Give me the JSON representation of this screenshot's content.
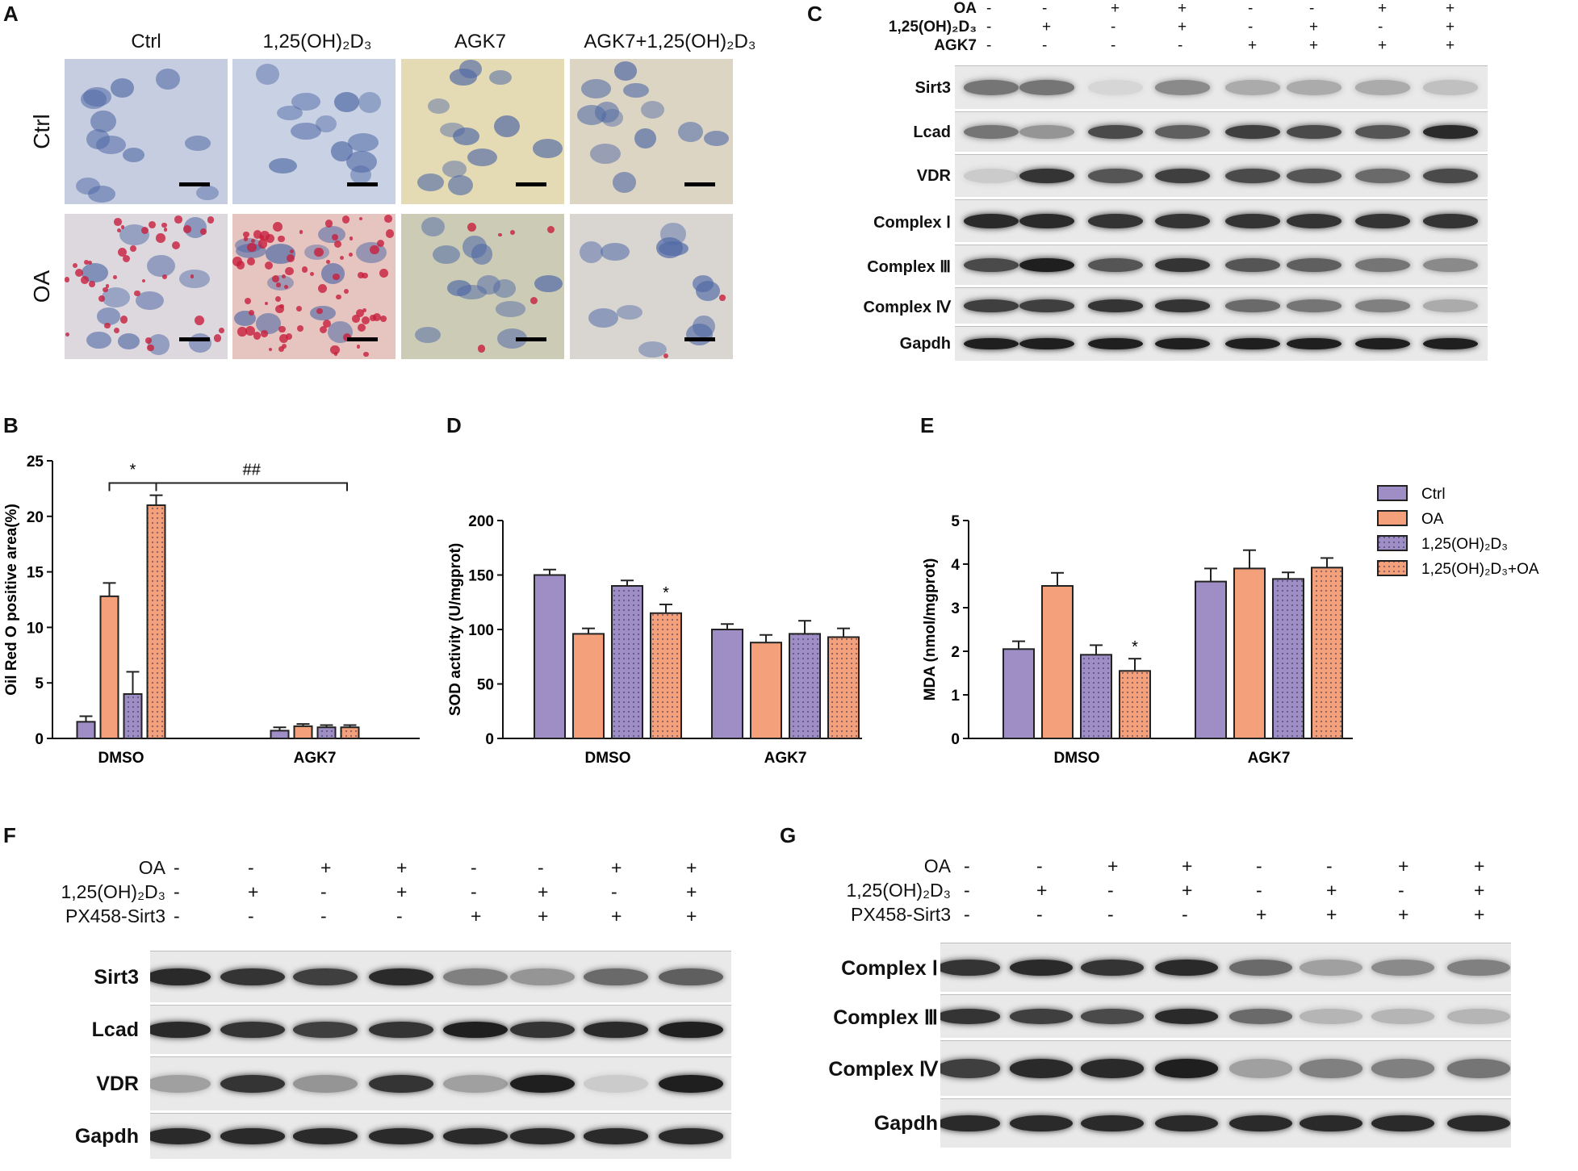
{
  "panel_labels": {
    "A": "A",
    "B": "B",
    "C": "C",
    "D": "D",
    "E": "E",
    "F": "F",
    "G": "G"
  },
  "panelA": {
    "col_headers": [
      "Ctrl",
      "1,25(OH)₂D₃",
      "AGK7",
      "AGK7+1,25(OH)₂D₃"
    ],
    "row_headers": [
      "Ctrl",
      "OA"
    ],
    "tile_colors": [
      [
        "#c7cde0",
        "#c9d2e4",
        "#e4dbb4",
        "#ddd5c3"
      ],
      [
        "#ddd8de",
        "#e6c5c0",
        "#cbcbb6",
        "#d9d6d2"
      ]
    ],
    "red_density": [
      [
        0,
        0,
        0,
        0
      ],
      [
        40,
        80,
        6,
        2
      ]
    ]
  },
  "panelC": {
    "conditions": [
      {
        "label": "OA",
        "signs": [
          "-",
          "-",
          "+",
          "+",
          "-",
          "-",
          "+",
          "+"
        ]
      },
      {
        "label": "1,25(OH)₂D₃",
        "signs": [
          "-",
          "+",
          "-",
          "+",
          "-",
          "+",
          "-",
          "+"
        ]
      },
      {
        "label": "AGK7",
        "signs": [
          "-",
          "-",
          "-",
          "-",
          "+",
          "+",
          "+",
          "+"
        ]
      }
    ],
    "blots": [
      {
        "label": "Sirt3",
        "intensity": [
          0.55,
          0.55,
          0.1,
          0.45,
          0.3,
          0.3,
          0.3,
          0.2
        ]
      },
      {
        "label": "Lcad",
        "intensity": [
          0.55,
          0.4,
          0.75,
          0.65,
          0.8,
          0.75,
          0.7,
          0.9
        ]
      },
      {
        "label": "VDR",
        "intensity": [
          0.15,
          0.85,
          0.7,
          0.8,
          0.75,
          0.7,
          0.6,
          0.75
        ]
      },
      {
        "label": "Complex Ⅰ",
        "intensity": [
          0.9,
          0.9,
          0.85,
          0.85,
          0.85,
          0.85,
          0.85,
          0.85
        ]
      },
      {
        "label": "Complex Ⅲ",
        "intensity": [
          0.75,
          0.95,
          0.7,
          0.85,
          0.7,
          0.65,
          0.55,
          0.45
        ]
      },
      {
        "label": "Complex Ⅳ",
        "intensity": [
          0.8,
          0.8,
          0.85,
          0.85,
          0.6,
          0.55,
          0.5,
          0.3
        ]
      },
      {
        "label": "Gapdh",
        "intensity": [
          0.95,
          0.95,
          0.95,
          0.95,
          0.95,
          0.95,
          0.95,
          0.95
        ]
      }
    ]
  },
  "legend": [
    {
      "label": "Ctrl",
      "color": "#9e8ec5",
      "pattern": false
    },
    {
      "label": "OA",
      "color": "#f4a07a",
      "pattern": false
    },
    {
      "label": "1,25(OH)₂D₃",
      "color": "#9e8ec5",
      "pattern": true
    },
    {
      "label": "1,25(OH)₂D₃+OA",
      "color": "#f4a07a",
      "pattern": true
    }
  ],
  "chart_data": [
    {
      "panel": "B",
      "type": "bar",
      "ylabel": "Oil Red O positive area(%)",
      "categories": [
        "DMSO",
        "AGK7"
      ],
      "ylim": [
        0,
        25
      ],
      "yticks": [
        0,
        5,
        10,
        15,
        20,
        25
      ],
      "series": [
        {
          "name": "Ctrl",
          "values": [
            1.5,
            0.7
          ],
          "errors": [
            0.5,
            0.3
          ]
        },
        {
          "name": "OA",
          "values": [
            12.8,
            1.1
          ],
          "errors": [
            1.2,
            0.2
          ]
        },
        {
          "name": "1,25(OH)₂D₃",
          "values": [
            4.0,
            1.0
          ],
          "errors": [
            2.0,
            0.2
          ]
        },
        {
          "name": "1,25(OH)₂D₃+OA",
          "values": [
            21.0,
            1.0
          ],
          "errors": [
            0.9,
            0.2
          ]
        }
      ],
      "annotations": [
        "*",
        "##"
      ]
    },
    {
      "panel": "D",
      "type": "bar",
      "ylabel": "SOD activity (U/mgprot)",
      "categories": [
        "DMSO",
        "AGK7"
      ],
      "ylim": [
        0,
        200
      ],
      "yticks": [
        0,
        50,
        100,
        150,
        200
      ],
      "series": [
        {
          "name": "Ctrl",
          "values": [
            150,
            100
          ],
          "errors": [
            5,
            5
          ]
        },
        {
          "name": "OA",
          "values": [
            96,
            88
          ],
          "errors": [
            5,
            7
          ]
        },
        {
          "name": "1,25(OH)₂D₃",
          "values": [
            140,
            96
          ],
          "errors": [
            5,
            12
          ]
        },
        {
          "name": "1,25(OH)₂D₃+OA",
          "values": [
            115,
            93
          ],
          "errors": [
            8,
            8
          ]
        }
      ],
      "annotations": [
        "*"
      ]
    },
    {
      "panel": "E",
      "type": "bar",
      "ylabel": "MDA (nmol/mgprot)",
      "categories": [
        "DMSO",
        "AGK7"
      ],
      "ylim": [
        0,
        5
      ],
      "yticks": [
        0,
        1,
        2,
        3,
        4,
        5
      ],
      "series": [
        {
          "name": "Ctrl",
          "values": [
            2.05,
            3.6
          ],
          "errors": [
            0.18,
            0.3
          ]
        },
        {
          "name": "OA",
          "values": [
            3.5,
            3.9
          ],
          "errors": [
            0.3,
            0.42
          ]
        },
        {
          "name": "1,25(OH)₂D₃",
          "values": [
            1.92,
            3.66
          ],
          "errors": [
            0.22,
            0.15
          ]
        },
        {
          "name": "1,25(OH)₂D₃+OA",
          "values": [
            1.55,
            3.92
          ],
          "errors": [
            0.28,
            0.22
          ]
        }
      ],
      "annotations": [
        "*"
      ]
    }
  ],
  "panelF": {
    "conditions": [
      {
        "label": "OA",
        "signs": [
          "-",
          "-",
          "+",
          "+",
          "-",
          "-",
          "+",
          "+"
        ]
      },
      {
        "label": "1,25(OH)₂D₃",
        "signs": [
          "-",
          "+",
          "-",
          "+",
          "-",
          "+",
          "-",
          "+"
        ]
      },
      {
        "label": "PX458-Sirt3",
        "signs": [
          "-",
          "-",
          "-",
          "-",
          "+",
          "+",
          "+",
          "+"
        ]
      }
    ],
    "blots": [
      {
        "label": "Sirt3",
        "intensity": [
          0.9,
          0.85,
          0.8,
          0.9,
          0.5,
          0.4,
          0.6,
          0.65
        ]
      },
      {
        "label": "Lcad",
        "intensity": [
          0.9,
          0.85,
          0.8,
          0.85,
          0.95,
          0.85,
          0.9,
          0.95
        ]
      },
      {
        "label": "VDR",
        "intensity": [
          0.35,
          0.85,
          0.4,
          0.85,
          0.35,
          0.95,
          0.15,
          0.95
        ]
      },
      {
        "label": "Gapdh",
        "intensity": [
          0.9,
          0.9,
          0.9,
          0.9,
          0.9,
          0.9,
          0.9,
          0.9
        ]
      }
    ]
  },
  "panelG": {
    "conditions": [
      {
        "label": "OA",
        "signs": [
          "-",
          "-",
          "+",
          "+",
          "-",
          "-",
          "+",
          "+"
        ]
      },
      {
        "label": "1,25(OH)₂D₃",
        "signs": [
          "-",
          "+",
          "-",
          "+",
          "-",
          "+",
          "-",
          "+"
        ]
      },
      {
        "label": "PX458-Sirt3",
        "signs": [
          "-",
          "-",
          "-",
          "-",
          "+",
          "+",
          "+",
          "+"
        ]
      }
    ],
    "blots": [
      {
        "label": "Complex Ⅰ",
        "intensity": [
          0.85,
          0.9,
          0.85,
          0.9,
          0.6,
          0.35,
          0.45,
          0.5
        ]
      },
      {
        "label": "Complex Ⅲ",
        "intensity": [
          0.85,
          0.8,
          0.75,
          0.9,
          0.6,
          0.25,
          0.25,
          0.25
        ]
      },
      {
        "label": "Complex Ⅳ",
        "intensity": [
          0.8,
          0.9,
          0.9,
          0.95,
          0.35,
          0.5,
          0.5,
          0.55
        ]
      },
      {
        "label": "Gapdh",
        "intensity": [
          0.9,
          0.9,
          0.9,
          0.9,
          0.9,
          0.9,
          0.9,
          0.9
        ]
      }
    ]
  }
}
